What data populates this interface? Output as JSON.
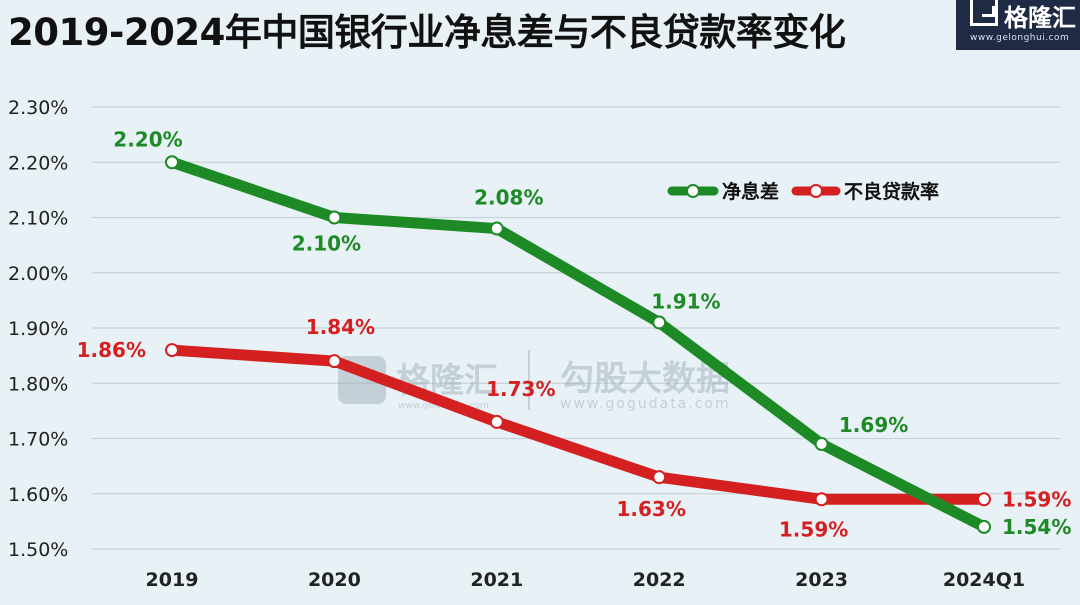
{
  "header": {
    "title": "2019-2024年中国银行业净息差与不良贷款率变化"
  },
  "logo": {
    "name": "格隆汇",
    "url": "www.gelonghui.com"
  },
  "watermark": {
    "brand": "格隆汇",
    "brand_sub": "www.gelonghui.com",
    "partner": "勾股大数据",
    "partner_url": "www.gogudata.com"
  },
  "colors": {
    "background": "#e7f1f6",
    "nim": "#1d8a26",
    "npl": "#d42020",
    "grid": "#c8d3d9"
  },
  "chart_data": {
    "type": "line",
    "title": "2019-2024年中国银行业净息差与不良贷款率变化",
    "categories": [
      "2019",
      "2020",
      "2021",
      "2022",
      "2023",
      "2024Q1"
    ],
    "ylim": [
      1.5,
      2.3
    ],
    "yticks": [
      "1.50%",
      "1.60%",
      "1.70%",
      "1.80%",
      "1.90%",
      "2.00%",
      "2.10%",
      "2.20%",
      "2.30%"
    ],
    "grid": true,
    "legend_position": "top-right",
    "series": [
      {
        "name": "净息差",
        "color": "#1d8a26",
        "values": [
          2.2,
          2.1,
          2.08,
          1.91,
          1.69,
          1.54
        ],
        "labels": [
          "2.20%",
          "2.10%",
          "2.08%",
          "1.91%",
          "1.69%",
          "1.54%"
        ]
      },
      {
        "name": "不良贷款率",
        "color": "#d42020",
        "values": [
          1.86,
          1.84,
          1.73,
          1.63,
          1.59,
          1.59
        ],
        "labels": [
          "1.86%",
          "1.84%",
          "1.73%",
          "1.63%",
          "1.59%",
          "1.59%"
        ]
      }
    ]
  }
}
